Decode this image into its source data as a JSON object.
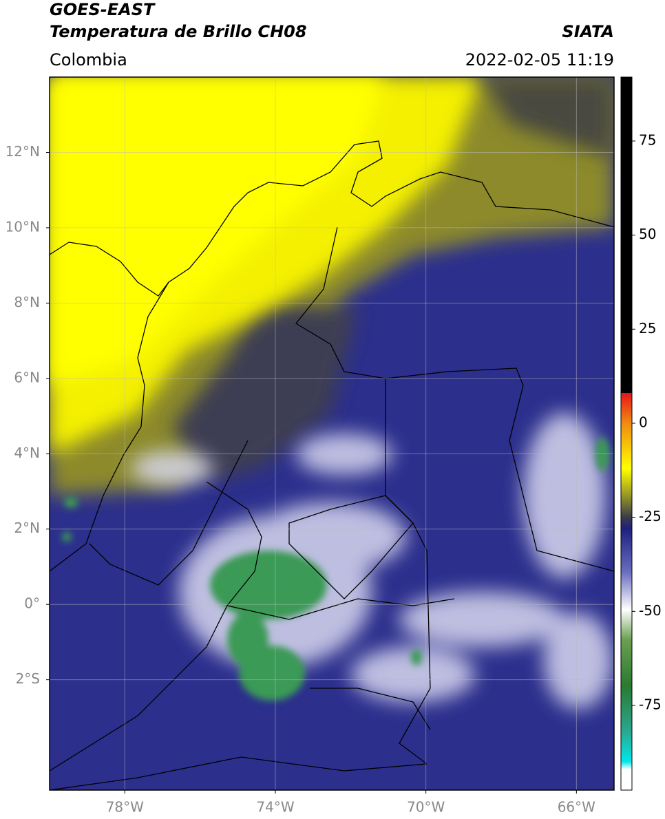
{
  "header": {
    "title": "GOES-EAST",
    "subtitle": "Temperatura de Brillo CH08",
    "source": "SIATA",
    "region": "Colombia",
    "datetime": "2022-02-05 11:19"
  },
  "map": {
    "xlim": [
      -80,
      -65
    ],
    "ylim": [
      -4.93,
      14
    ],
    "xticks": [
      {
        "value": -78,
        "label": "78°W"
      },
      {
        "value": -74,
        "label": "74°W"
      },
      {
        "value": -70,
        "label": "70°W"
      },
      {
        "value": -66,
        "label": "66°W"
      }
    ],
    "yticks": [
      {
        "value": 12,
        "label": "12°N"
      },
      {
        "value": 10,
        "label": "10°N"
      },
      {
        "value": 8,
        "label": "8°N"
      },
      {
        "value": 6,
        "label": "6°N"
      },
      {
        "value": 4,
        "label": "4°N"
      },
      {
        "value": 2,
        "label": "2°N"
      },
      {
        "value": 0,
        "label": "0°"
      },
      {
        "value": -2,
        "label": "2°S"
      }
    ],
    "grid": true
  },
  "colorbar": {
    "lim": [
      -97.5,
      92
    ],
    "ticks": [
      75,
      50,
      25,
      0,
      -25,
      -50,
      -75
    ]
  }
}
